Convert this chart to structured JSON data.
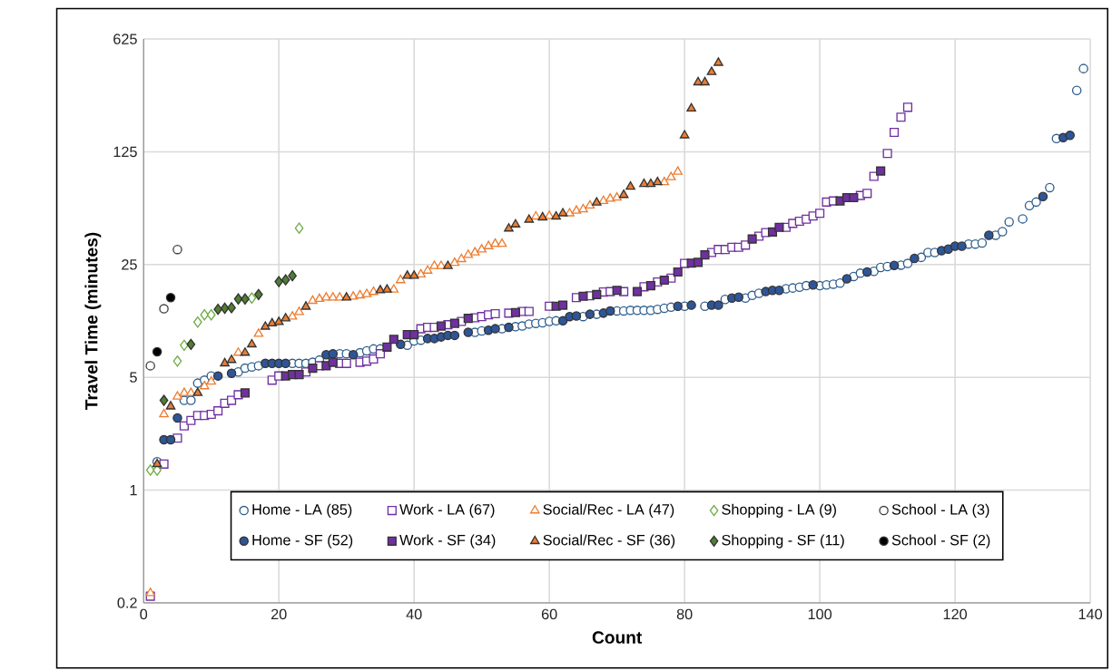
{
  "chart_data": {
    "type": "scatter",
    "xlabel": "Count",
    "ylabel": "Travel Time (minutes)",
    "log": true,
    "grid": true,
    "legend": "bottom",
    "xlim": [
      0,
      140
    ],
    "xticks": [
      0,
      20,
      40,
      60,
      80,
      100,
      120,
      140
    ],
    "ylim": [
      0.2,
      625
    ],
    "yticks": [
      0.2,
      1,
      5,
      25,
      125,
      625
    ],
    "series": [
      {
        "name": "Home - LA (85)",
        "color": "#2e5f8f",
        "marker": "circle",
        "x": [
          2,
          6,
          7,
          8,
          9,
          10,
          14,
          15,
          16,
          17,
          22,
          23,
          24,
          25,
          26,
          29,
          30,
          32,
          33,
          34,
          35,
          39,
          40,
          41,
          49,
          50,
          53,
          55,
          56,
          57,
          58,
          59,
          60,
          61,
          65,
          67,
          70,
          71,
          72,
          73,
          74,
          75,
          76,
          77,
          78,
          80,
          83,
          86,
          89,
          90,
          91,
          95,
          96,
          97,
          98,
          100,
          101,
          102,
          103,
          105,
          106,
          108,
          109,
          110,
          112,
          113,
          115,
          116,
          117,
          122,
          123,
          124,
          126,
          127,
          128,
          130,
          131,
          132,
          134,
          135,
          138,
          139
        ],
        "values": [
          1.5,
          3.6,
          3.6,
          4.6,
          4.8,
          5.1,
          5.4,
          5.7,
          5.8,
          5.9,
          6.1,
          6.1,
          6.1,
          6.2,
          6.4,
          7.0,
          7.0,
          7.1,
          7.3,
          7.5,
          7.5,
          7.9,
          8.4,
          8.5,
          9.5,
          9.7,
          10,
          10.3,
          10.4,
          10.7,
          10.8,
          10.9,
          11.1,
          11.2,
          11.9,
          12.3,
          12.9,
          12.9,
          13,
          13,
          13,
          13,
          13.2,
          13.4,
          13.6,
          13.8,
          13.8,
          15.2,
          15.5,
          16.1,
          16.6,
          17.7,
          17.9,
          18.1,
          18.5,
          18.5,
          18.7,
          18.9,
          19.2,
          21.1,
          22.1,
          22.7,
          24,
          24.3,
          24.8,
          25.4,
          27.7,
          29.7,
          29.7,
          33.5,
          33.5,
          34,
          38,
          40,
          46,
          48,
          58,
          61,
          75,
          151,
          300,
          410
        ]
      },
      {
        "name": "Work - LA (67)",
        "color": "#7030a0",
        "marker": "square",
        "x": [
          1,
          3,
          5,
          6,
          7,
          8,
          9,
          10,
          11,
          12,
          13,
          14,
          19,
          20,
          24,
          26,
          29,
          30,
          32,
          33,
          34,
          35,
          41,
          42,
          43,
          45,
          47,
          49,
          50,
          51,
          52,
          54,
          56,
          57,
          60,
          64,
          66,
          68,
          69,
          71,
          74,
          76,
          78,
          80,
          84,
          85,
          86,
          87,
          88,
          89,
          91,
          92,
          95,
          96,
          97,
          98,
          99,
          100,
          101,
          102,
          106,
          107,
          108,
          110,
          111,
          112,
          113
        ],
        "values": [
          0.22,
          1.45,
          2.1,
          2.5,
          2.7,
          2.9,
          2.9,
          2.95,
          3.1,
          3.45,
          3.6,
          3.9,
          4.8,
          5.1,
          5.4,
          5.9,
          6.1,
          6.1,
          6.2,
          6.3,
          6.5,
          7.0,
          10,
          10.2,
          10.2,
          10.6,
          11.1,
          11.7,
          11.9,
          12.2,
          12.4,
          12.5,
          12.8,
          12.8,
          13.8,
          15.6,
          16,
          16.9,
          17,
          17,
          18.2,
          19.5,
          20.6,
          25.4,
          29.7,
          31,
          31,
          32,
          32,
          33,
          37.5,
          39.5,
          42.5,
          45,
          46.4,
          47.8,
          50,
          52,
          61,
          62,
          67,
          69,
          88,
          122,
          165,
          205,
          236
        ]
      },
      {
        "name": "Social/Rec - LA (47)",
        "color": "#ed7d31",
        "marker": "triangle",
        "x": [
          1,
          3,
          5,
          6,
          7,
          9,
          10,
          14,
          17,
          22,
          23,
          25,
          26,
          27,
          28,
          29,
          31,
          32,
          33,
          34,
          37,
          38,
          41,
          42,
          43,
          44,
          46,
          47,
          48,
          49,
          50,
          51,
          52,
          53,
          58,
          60,
          63,
          64,
          65,
          66,
          68,
          69,
          70,
          77,
          78,
          79
        ],
        "values": [
          0.23,
          2.95,
          3.8,
          4.0,
          4.0,
          4.4,
          4.7,
          7.1,
          9.3,
          11.9,
          12.7,
          14.9,
          15.3,
          15.6,
          15.6,
          15.6,
          15.8,
          16.1,
          16.4,
          16.9,
          17.5,
          20,
          21.7,
          22.9,
          24.5,
          24.5,
          25.6,
          27,
          28.7,
          29.7,
          31,
          32.5,
          33.6,
          33.6,
          49.6,
          50,
          51.9,
          53.9,
          55,
          58,
          62,
          64,
          65,
          81,
          87,
          94
        ]
      },
      {
        "name": "Shopping - LA (9)",
        "color": "#70ad47",
        "marker": "diamond",
        "x": [
          1,
          2,
          5,
          6,
          8,
          9,
          10,
          16,
          23
        ],
        "values": [
          1.33,
          1.33,
          6.3,
          7.9,
          11,
          12.2,
          12.2,
          15.5,
          42
        ]
      },
      {
        "name": "School - LA (3)",
        "color": "#404040",
        "marker": "circle",
        "x": [
          1,
          3,
          5
        ],
        "values": [
          5.9,
          13.3,
          31
        ]
      },
      {
        "name": "Home - SF (52)",
        "color": "#2e5597",
        "marker": "circle",
        "x": [
          3,
          4,
          5,
          11,
          13,
          18,
          19,
          20,
          21,
          27,
          28,
          31,
          38,
          42,
          43,
          44,
          45,
          46,
          48,
          51,
          52,
          54,
          62,
          63,
          64,
          66,
          68,
          69,
          79,
          81,
          84,
          85,
          87,
          88,
          92,
          93,
          94,
          99,
          104,
          107,
          111,
          114,
          118,
          119,
          120,
          121,
          125,
          133,
          136,
          137
        ],
        "values": [
          2.05,
          2.05,
          2.8,
          5.1,
          5.3,
          6.1,
          6.1,
          6.1,
          6.1,
          6.9,
          7.0,
          6.9,
          8.0,
          8.7,
          8.7,
          8.9,
          9.1,
          9.1,
          9.5,
          9.8,
          10,
          10.2,
          11.2,
          11.9,
          12,
          12.3,
          12.5,
          12.9,
          13.8,
          14.0,
          14,
          14,
          15.5,
          15.7,
          17,
          17.3,
          17.3,
          18.7,
          20.4,
          22.5,
          24.7,
          27.3,
          30.5,
          31.2,
          32.5,
          32.5,
          38,
          66,
          153,
          158
        ]
      },
      {
        "name": "Work - SF (34)",
        "color": "#7030a0",
        "marker": "square",
        "x": [
          15,
          21,
          22,
          23,
          25,
          27,
          28,
          36,
          37,
          39,
          40,
          44,
          46,
          48,
          55,
          61,
          62,
          65,
          67,
          70,
          73,
          75,
          77,
          79,
          81,
          82,
          83,
          90,
          93,
          94,
          103,
          104,
          105,
          109
        ],
        "values": [
          4.0,
          5.1,
          5.2,
          5.2,
          5.7,
          5.9,
          6.2,
          7.7,
          8.6,
          9.2,
          9.2,
          10.4,
          10.8,
          11.6,
          12.6,
          13.8,
          14,
          15.9,
          16.3,
          17.3,
          17,
          18.5,
          20,
          22.5,
          25.5,
          25.8,
          28.7,
          36,
          39.8,
          42.5,
          62,
          65,
          65,
          95
        ]
      },
      {
        "name": "Social/Rec - SF (36)",
        "color": "#ed7d31",
        "marker": "triangle",
        "x": [
          2,
          4,
          8,
          12,
          13,
          15,
          16,
          18,
          19,
          20,
          21,
          24,
          30,
          35,
          36,
          39,
          40,
          45,
          54,
          55,
          57,
          59,
          61,
          62,
          67,
          71,
          72,
          74,
          75,
          76,
          80,
          81,
          82,
          83,
          84,
          85
        ],
        "values": [
          1.45,
          3.3,
          4.0,
          6.1,
          6.4,
          7.1,
          8.0,
          10.3,
          10.8,
          11,
          11.6,
          13.7,
          15.6,
          17.3,
          17.5,
          21.3,
          21.3,
          24.5,
          41.8,
          44.3,
          47.4,
          49,
          49.6,
          51.9,
          60.6,
          67.5,
          76,
          79,
          79,
          81,
          158,
          232,
          337,
          337,
          390,
          445
        ]
      },
      {
        "name": "Shopping - SF (11)",
        "color": "#507e32",
        "marker": "diamond",
        "x": [
          3,
          7,
          11,
          12,
          13,
          14,
          15,
          17,
          20,
          21,
          22
        ],
        "values": [
          3.6,
          8.0,
          13.2,
          13.4,
          13.5,
          15.3,
          15.3,
          16.3,
          19.6,
          20.1,
          21.3
        ]
      },
      {
        "name": "School - SF (2)",
        "color": "#000000",
        "marker": "circle",
        "x": [
          2,
          4
        ],
        "values": [
          7.2,
          15.6
        ]
      }
    ]
  }
}
